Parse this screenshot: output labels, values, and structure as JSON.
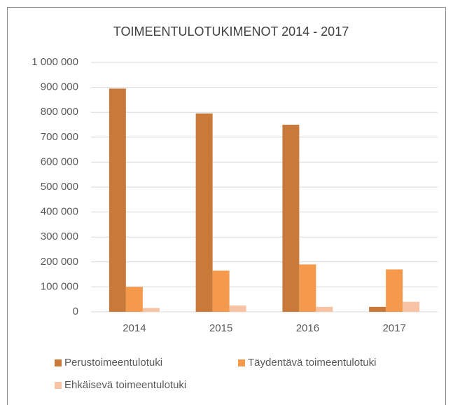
{
  "chart_data": {
    "type": "bar",
    "title": "TOIMEENTULOTUKIMENOT 2014 - 2017",
    "categories": [
      "2014",
      "2015",
      "2016",
      "2017"
    ],
    "series": [
      {
        "name": "Perustoimeentulotuki",
        "color": "#c97a3b",
        "values": [
          895000,
          795000,
          750000,
          20000
        ]
      },
      {
        "name": "Täydentävä toimeentulotuki",
        "color": "#f59a4c",
        "values": [
          100000,
          165000,
          190000,
          170000
        ]
      },
      {
        "name": "Ehkäisevä toimeentulotuki",
        "color": "#f8c3a4",
        "values": [
          15000,
          25000,
          20000,
          40000
        ]
      }
    ],
    "ylim": [
      0,
      1000000
    ],
    "yticks": [
      0,
      {
        "value": 100000,
        "label": "100 000"
      },
      {
        "value": 200000,
        "label": "200 000"
      },
      {
        "value": 300000,
        "label": "300 000"
      },
      {
        "value": 400000,
        "label": "400 000"
      },
      {
        "value": 500000,
        "label": "500 000"
      },
      {
        "value": 600000,
        "label": "600 000"
      },
      {
        "value": 700000,
        "label": "700 000"
      },
      {
        "value": 800000,
        "label": "800 000"
      },
      {
        "value": 900000,
        "label": "900 000"
      },
      {
        "value": 1000000,
        "label": "1 000 000"
      }
    ],
    "grid": true,
    "legend": "bottom"
  }
}
